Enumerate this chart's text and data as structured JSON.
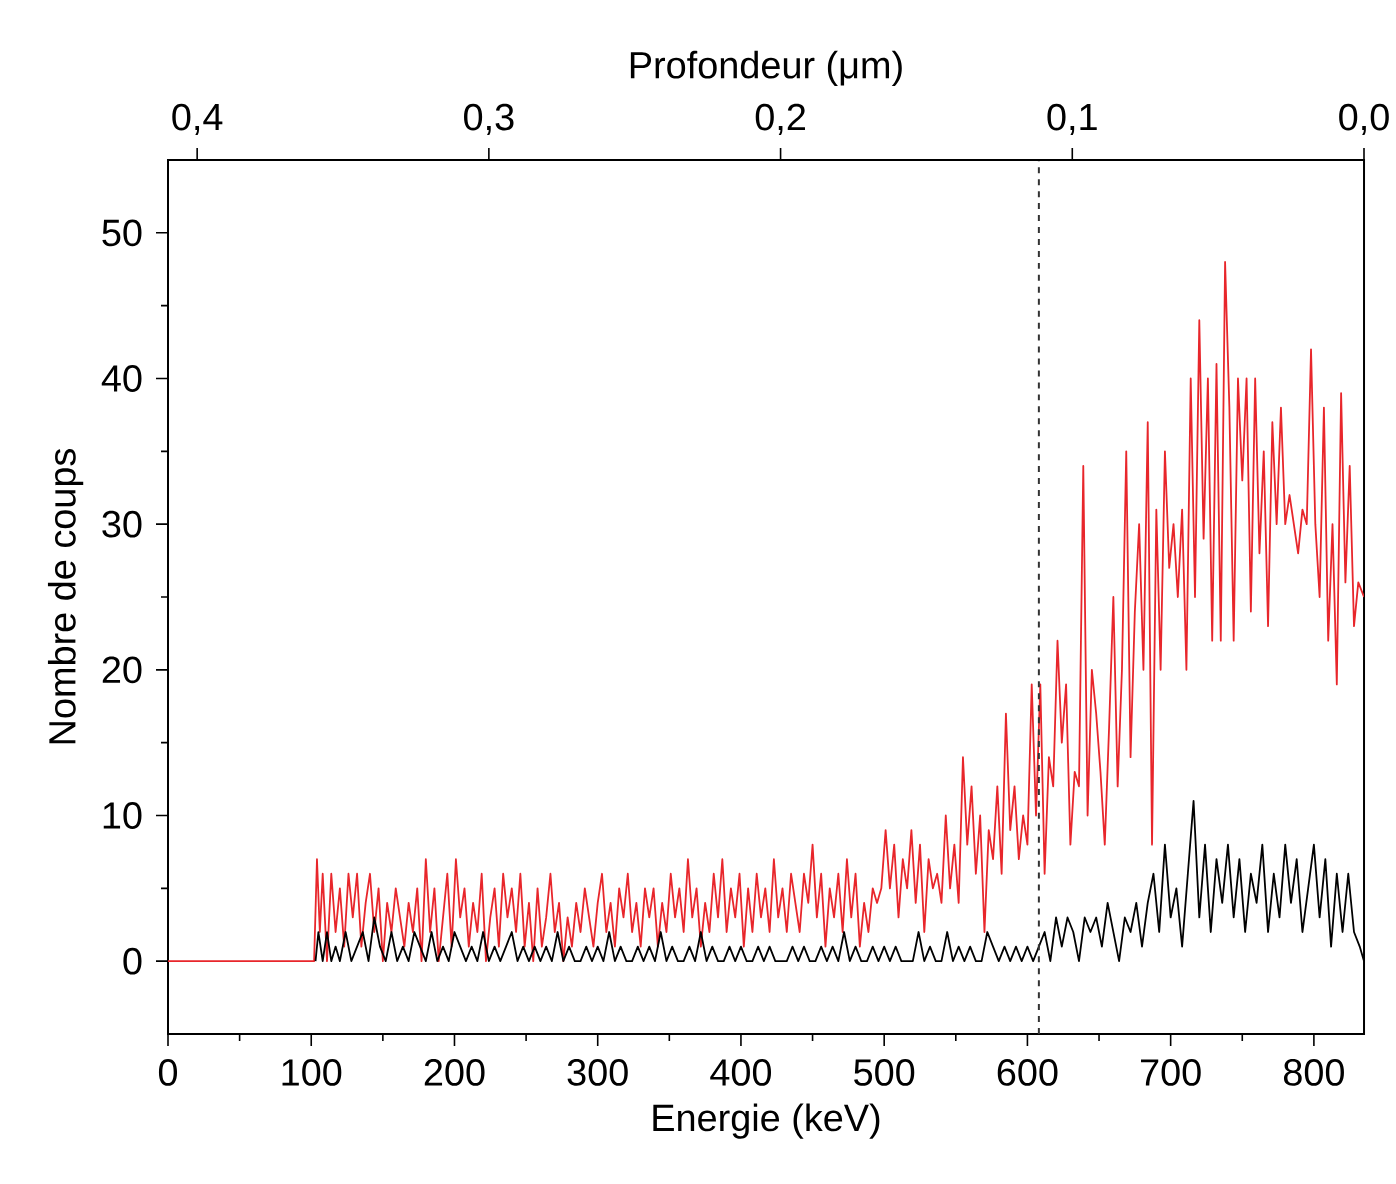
{
  "chart_data": {
    "type": "line",
    "xlabel": "Energie (keV)",
    "ylabel": "Nombre de coups",
    "x2label": "Profondeur (μm)",
    "xlim": [
      0,
      835
    ],
    "ylim": [
      -5,
      55
    ],
    "xticks": [
      0,
      100,
      200,
      300,
      400,
      500,
      600,
      700,
      800
    ],
    "yticks": [
      0,
      10,
      20,
      30,
      40,
      50
    ],
    "x2lim": [
      0.41,
      0.0
    ],
    "x2ticks": [
      {
        "value": 0.4,
        "label": "0,4"
      },
      {
        "value": 0.3,
        "label": "0,3"
      },
      {
        "value": 0.2,
        "label": "0,2"
      },
      {
        "value": 0.1,
        "label": "0,1"
      },
      {
        "value": 0.0,
        "label": "0,0"
      }
    ],
    "grid": false,
    "marker": "none",
    "line_style": "solid",
    "ref_lines": [
      {
        "axis": "x",
        "value": 608,
        "color": "#333333",
        "line_style": "dashed"
      }
    ],
    "series": [
      {
        "color": "#e8262b",
        "x": [
          0,
          102,
          104,
          106,
          108,
          111,
          114,
          117,
          120,
          123,
          126,
          129,
          132,
          135,
          138,
          141,
          144,
          147,
          150,
          153,
          156,
          159,
          162,
          165,
          168,
          171,
          174,
          177,
          180,
          183,
          186,
          189,
          192,
          195,
          198,
          201,
          204,
          207,
          210,
          213,
          216,
          219,
          222,
          225,
          228,
          231,
          234,
          237,
          240,
          243,
          246,
          249,
          252,
          255,
          258,
          261,
          264,
          267,
          270,
          273,
          276,
          279,
          282,
          285,
          288,
          291,
          294,
          297,
          300,
          303,
          306,
          309,
          312,
          315,
          318,
          321,
          324,
          327,
          330,
          333,
          336,
          339,
          342,
          345,
          348,
          351,
          354,
          357,
          360,
          363,
          366,
          369,
          372,
          375,
          378,
          381,
          384,
          387,
          390,
          393,
          396,
          399,
          402,
          405,
          408,
          411,
          414,
          417,
          420,
          423,
          426,
          429,
          432,
          435,
          438,
          441,
          444,
          447,
          450,
          453,
          456,
          459,
          462,
          465,
          468,
          471,
          474,
          477,
          480,
          483,
          486,
          489,
          492,
          495,
          498,
          501,
          504,
          507,
          510,
          513,
          516,
          519,
          522,
          525,
          528,
          531,
          534,
          537,
          540,
          543,
          546,
          549,
          552,
          555,
          558,
          561,
          564,
          567,
          570,
          573,
          576,
          579,
          582,
          585,
          588,
          591,
          594,
          597,
          600,
          603,
          606,
          609,
          612,
          615,
          618,
          621,
          624,
          627,
          630,
          633,
          636,
          639,
          642,
          645,
          648,
          651,
          654,
          657,
          660,
          663,
          666,
          669,
          672,
          675,
          678,
          681,
          684,
          687,
          690,
          693,
          696,
          699,
          702,
          705,
          708,
          711,
          714,
          717,
          720,
          723,
          726,
          729,
          732,
          735,
          738,
          741,
          744,
          747,
          750,
          753,
          756,
          759,
          762,
          765,
          768,
          771,
          774,
          777,
          780,
          783,
          786,
          789,
          792,
          795,
          798,
          801,
          804,
          807,
          810,
          813,
          816,
          819,
          822,
          825,
          828,
          831,
          835
        ],
        "values": [
          0,
          0,
          7,
          2,
          6,
          0,
          6,
          2,
          5,
          1,
          6,
          3,
          6,
          1,
          4,
          6,
          2,
          5,
          0,
          4,
          2,
          5,
          3,
          1,
          4,
          2,
          5,
          0,
          7,
          2,
          5,
          0,
          3,
          6,
          1,
          7,
          3,
          5,
          1,
          4,
          2,
          6,
          0,
          3,
          5,
          1,
          6,
          3,
          5,
          2,
          6,
          1,
          4,
          0,
          5,
          1,
          3,
          6,
          2,
          4,
          0,
          3,
          1,
          4,
          2,
          5,
          3,
          1,
          4,
          6,
          2,
          4,
          1,
          5,
          3,
          6,
          2,
          4,
          1,
          5,
          3,
          5,
          1,
          4,
          2,
          6,
          3,
          5,
          2,
          7,
          3,
          5,
          1,
          4,
          2,
          6,
          3,
          7,
          2,
          5,
          3,
          6,
          1,
          5,
          2,
          6,
          3,
          5,
          2,
          7,
          3,
          5,
          2,
          6,
          4,
          2,
          6,
          4,
          8,
          3,
          6,
          1,
          5,
          3,
          6,
          2,
          7,
          3,
          6,
          1,
          4,
          2,
          5,
          4,
          5,
          9,
          5,
          8,
          3,
          7,
          5,
          9,
          4,
          8,
          2,
          7,
          5,
          6,
          4,
          10,
          5,
          8,
          4,
          14,
          8,
          12,
          6,
          10,
          2,
          9,
          7,
          12,
          6,
          17,
          9,
          12,
          7,
          10,
          8,
          19,
          10,
          19,
          6,
          14,
          12,
          22,
          15,
          19,
          8,
          13,
          12,
          34,
          10,
          20,
          17,
          13,
          8,
          16,
          25,
          12,
          20,
          35,
          14,
          24,
          30,
          20,
          37,
          8,
          31,
          20,
          35,
          27,
          30,
          25,
          31,
          20,
          40,
          25,
          44,
          29,
          40,
          22,
          41,
          22,
          48,
          38,
          22,
          40,
          33,
          40,
          24,
          40,
          28,
          35,
          23,
          37,
          30,
          38,
          30,
          32,
          30,
          28,
          31,
          30,
          42,
          30,
          25,
          38,
          22,
          30,
          19,
          39,
          26,
          34,
          23,
          26,
          25
        ]
      },
      {
        "color": "#000000",
        "x": [
          103,
          105,
          108,
          111,
          114,
          117,
          120,
          124,
          128,
          132,
          136,
          140,
          144,
          148,
          152,
          156,
          160,
          164,
          168,
          172,
          176,
          180,
          184,
          188,
          192,
          196,
          200,
          204,
          208,
          212,
          216,
          220,
          224,
          228,
          232,
          236,
          240,
          244,
          248,
          252,
          256,
          260,
          264,
          268,
          272,
          276,
          280,
          284,
          288,
          292,
          296,
          300,
          304,
          308,
          312,
          316,
          320,
          324,
          328,
          332,
          336,
          340,
          344,
          348,
          352,
          356,
          360,
          364,
          368,
          372,
          376,
          380,
          384,
          388,
          392,
          396,
          400,
          404,
          408,
          412,
          416,
          420,
          424,
          428,
          432,
          436,
          440,
          444,
          448,
          452,
          456,
          460,
          464,
          468,
          472,
          476,
          480,
          484,
          488,
          492,
          496,
          500,
          504,
          508,
          512,
          516,
          520,
          524,
          528,
          532,
          536,
          540,
          544,
          548,
          552,
          556,
          560,
          564,
          568,
          572,
          576,
          580,
          584,
          588,
          592,
          596,
          600,
          604,
          608,
          612,
          616,
          620,
          624,
          628,
          632,
          636,
          640,
          644,
          648,
          652,
          656,
          660,
          664,
          668,
          672,
          676,
          680,
          684,
          688,
          692,
          696,
          700,
          704,
          708,
          712,
          716,
          720,
          724,
          728,
          732,
          736,
          740,
          744,
          748,
          752,
          756,
          760,
          764,
          768,
          772,
          776,
          780,
          784,
          788,
          792,
          796,
          800,
          804,
          808,
          812,
          816,
          820,
          824,
          828,
          832,
          835
        ],
        "values": [
          0,
          2,
          0,
          2,
          0,
          1,
          0,
          2,
          0,
          1,
          2,
          0,
          3,
          1,
          0,
          2,
          0,
          1,
          0,
          2,
          1,
          0,
          2,
          0,
          1,
          0,
          2,
          1,
          0,
          1,
          0,
          2,
          0,
          1,
          0,
          1,
          2,
          0,
          1,
          0,
          1,
          0,
          1,
          0,
          2,
          0,
          1,
          0,
          0,
          1,
          0,
          1,
          0,
          2,
          0,
          1,
          0,
          0,
          1,
          0,
          1,
          0,
          2,
          0,
          1,
          0,
          0,
          1,
          0,
          2,
          0,
          1,
          0,
          0,
          1,
          0,
          1,
          0,
          0,
          1,
          0,
          1,
          0,
          0,
          0,
          1,
          0,
          1,
          0,
          0,
          1,
          0,
          1,
          0,
          2,
          0,
          1,
          0,
          0,
          1,
          0,
          1,
          0,
          1,
          0,
          0,
          0,
          2,
          0,
          1,
          0,
          0,
          2,
          0,
          1,
          0,
          1,
          0,
          0,
          2,
          1,
          0,
          1,
          0,
          1,
          0,
          1,
          0,
          1,
          2,
          0,
          3,
          1,
          3,
          2,
          0,
          3,
          2,
          3,
          1,
          4,
          2,
          0,
          3,
          2,
          4,
          1,
          4,
          6,
          2,
          8,
          3,
          5,
          1,
          6,
          11,
          3,
          8,
          2,
          7,
          4,
          8,
          3,
          7,
          2,
          6,
          4,
          8,
          2,
          6,
          3,
          8,
          4,
          7,
          2,
          5,
          8,
          3,
          7,
          1,
          6,
          2,
          6,
          2,
          1,
          0
        ]
      }
    ]
  }
}
